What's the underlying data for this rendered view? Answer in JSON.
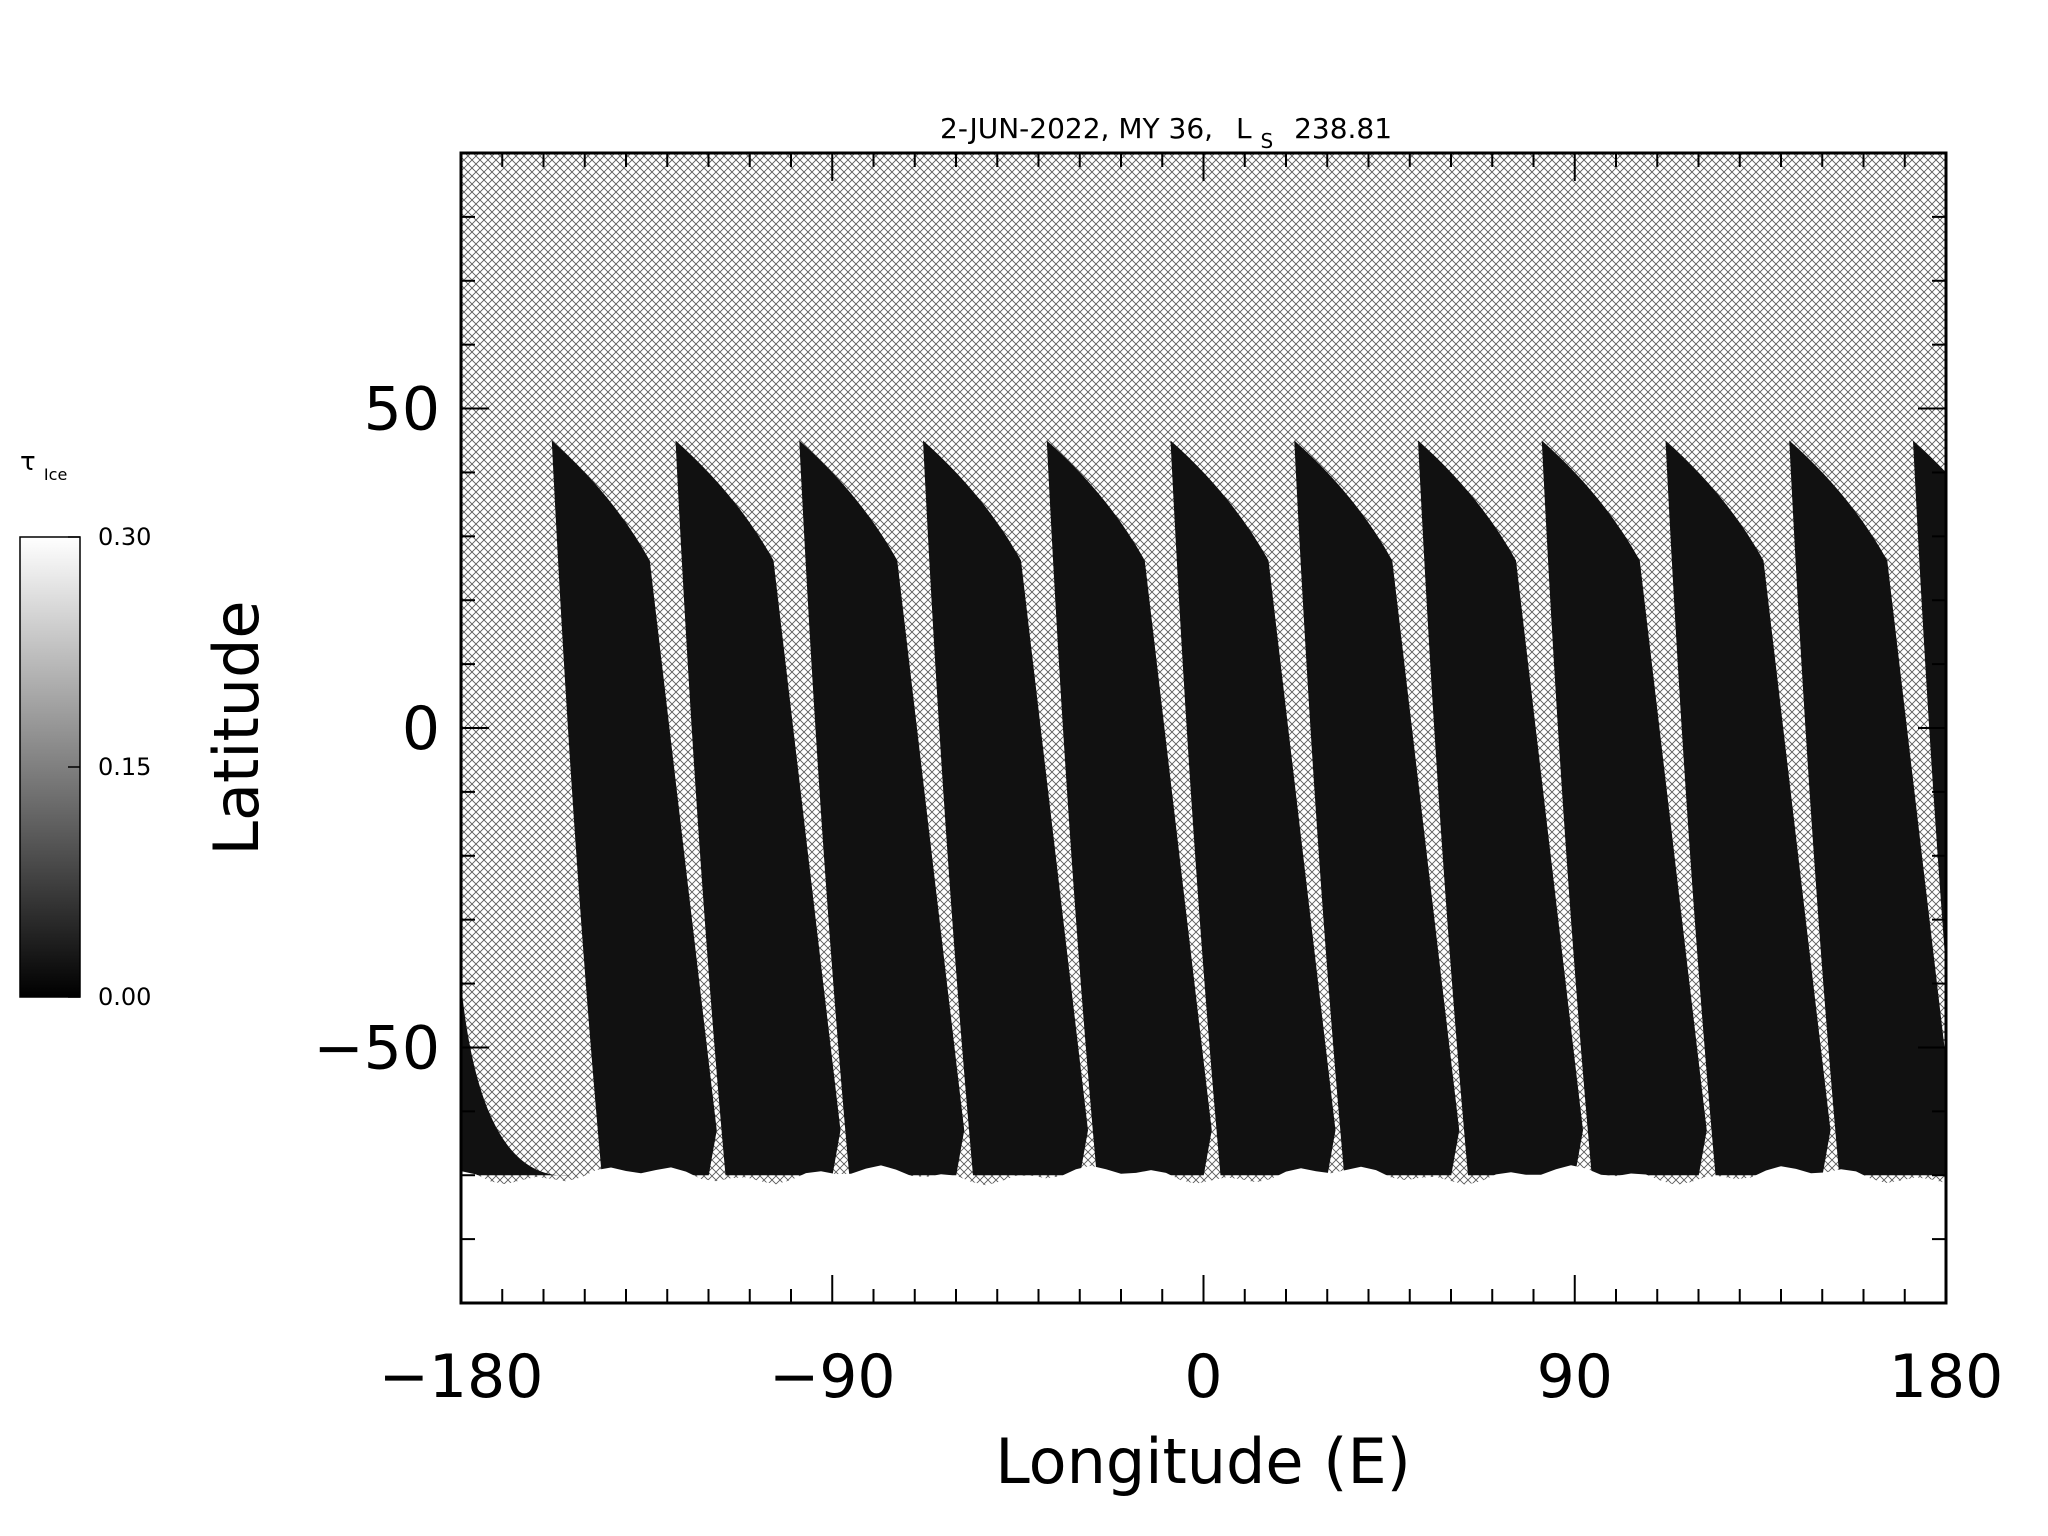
{
  "chart_data": {
    "type": "heatmap",
    "title": "2-JUN-2022, MY 36,",
    "title_ls_symbol": "L",
    "title_ls_subscript": "S",
    "title_ls_value": "238.81",
    "xlabel": "Longitude (E)",
    "ylabel": "Latitude",
    "xlim": [
      -180,
      180
    ],
    "ylim": [
      -90,
      90
    ],
    "x_ticks": [
      -180,
      -90,
      0,
      90,
      180
    ],
    "x_tick_labels": [
      "−180",
      "−90",
      "0",
      "90",
      "180"
    ],
    "y_ticks": [
      -50,
      0,
      50
    ],
    "y_tick_labels": [
      "−50",
      "0",
      "50"
    ],
    "x_minor_step": 10,
    "y_minor_step": 10,
    "colorbar": {
      "label_symbol": "τ",
      "label_subscript": "Ice",
      "range": [
        0.0,
        0.3
      ],
      "ticks": [
        0.0,
        0.15,
        0.3
      ],
      "tick_labels": [
        "0.00",
        "0.15",
        "0.30"
      ],
      "colormap": "grayscale"
    },
    "no_data_pattern": "crosshatch",
    "swaths": {
      "count": 12,
      "top_lat": 45,
      "bottom_lat": -70,
      "top_lons": [
        -158,
        -128,
        -98,
        -68,
        -38,
        -8,
        22,
        52,
        82,
        112,
        142,
        172
      ],
      "approx_value": 0.02
    },
    "polar_cap": {
      "lat_range": [
        -90,
        -70
      ],
      "approx_value": 0.3
    }
  }
}
